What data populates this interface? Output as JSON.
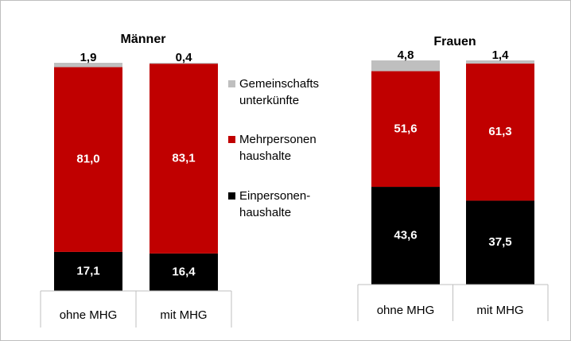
{
  "chart_data": [
    {
      "type": "stacked_bar",
      "title": "Männer",
      "categories": [
        "ohne MHG",
        "mit MHG"
      ],
      "series": [
        {
          "name": "Einpersonen- haushalte",
          "color": "#000000",
          "values": [
            17.1,
            16.4
          ],
          "value_labels": [
            "17,1",
            "16,4"
          ]
        },
        {
          "name": "Mehrpersonen haushalte",
          "color": "#c00000",
          "values": [
            81.0,
            83.1
          ],
          "value_labels": [
            "81,0",
            "83,1"
          ]
        },
        {
          "name": "Gemeinschafts unterkünfte",
          "color": "#bfbfbf",
          "values": [
            1.9,
            0.4
          ],
          "value_labels": [
            "1,9",
            "0,4"
          ]
        }
      ]
    },
    {
      "type": "stacked_bar",
      "title": "Frauen",
      "categories": [
        "ohne MHG",
        "mit MHG"
      ],
      "series": [
        {
          "color": "#000000",
          "values": [
            43.6,
            37.5
          ],
          "value_labels": [
            "43,6",
            "37,5"
          ]
        },
        {
          "color": "#c00000",
          "values": [
            51.6,
            61.3
          ],
          "value_labels": [
            "51,6",
            "61,3"
          ]
        },
        {
          "color": "#bfbfbf",
          "values": [
            4.8,
            1.4
          ],
          "value_labels": [
            "4,8",
            "1,4"
          ]
        }
      ]
    }
  ]
}
